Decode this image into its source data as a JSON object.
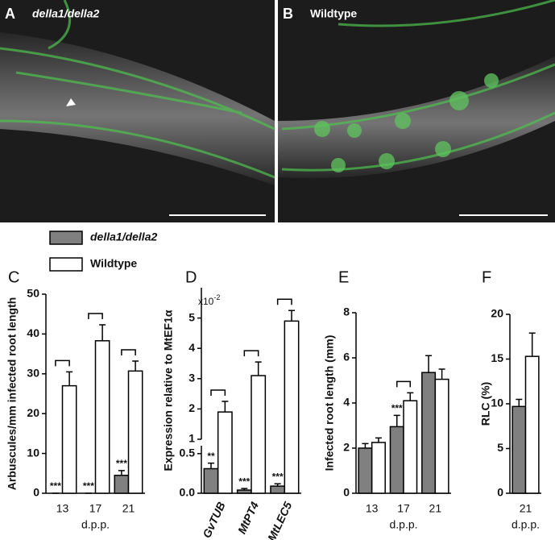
{
  "panels": [
    {
      "letter": "A",
      "label": "della1/della2"
    },
    {
      "letter": "B",
      "label": "Wildtype"
    }
  ],
  "chart_data": [
    {
      "type": "bar",
      "panel_letter": "C",
      "y_label": "Arbuscules/mm infected root length",
      "x_label": "d.p.p.",
      "categories": [
        "13",
        "17",
        "21"
      ],
      "series": [
        {
          "name": "della1/della2",
          "color": "#808080",
          "values": [
            0,
            0,
            4.5
          ],
          "errors": [
            0,
            0,
            1.2
          ],
          "annotations": [
            "***",
            "***",
            "***"
          ]
        },
        {
          "name": "Wildtype",
          "color": "#ffffff",
          "values": [
            27,
            38.3,
            30.7
          ],
          "errors": [
            3.5,
            4,
            2.5
          ]
        }
      ],
      "significance_brackets": [
        true,
        true,
        true
      ],
      "ylim": [
        0,
        50
      ],
      "yticks": [
        0,
        10,
        20,
        30,
        40,
        50
      ],
      "legend": "top-left"
    },
    {
      "type": "bar",
      "panel_letter": "D",
      "y_label": "Expression relative to MtEF1α",
      "multiplier": {
        "base": "x10",
        "exponent": "-2"
      },
      "categories": [
        "GvTUB",
        "MtPT4",
        "MtLEC5"
      ],
      "series": [
        {
          "name": "della1/della2",
          "color": "#808080",
          "values": [
            0.31,
            0.04,
            0.09
          ],
          "errors": [
            0.07,
            0.02,
            0.03
          ],
          "annotations": [
            "**",
            "***",
            "***"
          ]
        },
        {
          "name": "Wildtype",
          "color": "#ffffff",
          "values": [
            1.9,
            3.1,
            4.9
          ],
          "errors": [
            0.35,
            0.45,
            0.35
          ]
        }
      ],
      "significance_brackets": [
        true,
        true,
        true
      ],
      "y_segments": [
        {
          "ylim": [
            0,
            0.6
          ],
          "yticks": [
            {
              "value": 0,
              "label": "0.0"
            },
            {
              "value": 0.5,
              "label": "0.5"
            }
          ]
        },
        {
          "ylim": [
            1,
            6
          ],
          "yticks": [
            1,
            2,
            3,
            4,
            5
          ]
        }
      ]
    },
    {
      "type": "bar",
      "panel_letter": "E",
      "y_label": "Infected root length (mm)",
      "x_label": "d.p.p.",
      "categories": [
        "13",
        "17",
        "21"
      ],
      "series": [
        {
          "name": "della1/della2",
          "color": "#808080",
          "values": [
            2.0,
            2.95,
            5.35
          ],
          "errors": [
            0.2,
            0.5,
            0.75
          ],
          "annotations": [
            null,
            "***",
            null
          ]
        },
        {
          "name": "Wildtype",
          "color": "#ffffff",
          "values": [
            2.25,
            4.1,
            5.05
          ],
          "errors": [
            0.2,
            0.35,
            0.45
          ]
        }
      ],
      "significance_brackets": [
        false,
        true,
        false
      ],
      "ylim": [
        0,
        8
      ],
      "yticks": [
        0,
        2,
        4,
        6,
        8
      ]
    },
    {
      "type": "bar",
      "panel_letter": "F",
      "y_label": "RLC (%)",
      "x_label": "d.p.p.",
      "categories": [
        "21"
      ],
      "series": [
        {
          "name": "della1/della2",
          "color": "#808080",
          "values": [
            9.7
          ],
          "errors": [
            0.8
          ]
        },
        {
          "name": "Wildtype",
          "color": "#ffffff",
          "values": [
            15.3
          ],
          "errors": [
            2.6
          ]
        }
      ],
      "ylim": [
        0,
        20
      ],
      "yticks": [
        0,
        5,
        10,
        15,
        20
      ]
    }
  ]
}
